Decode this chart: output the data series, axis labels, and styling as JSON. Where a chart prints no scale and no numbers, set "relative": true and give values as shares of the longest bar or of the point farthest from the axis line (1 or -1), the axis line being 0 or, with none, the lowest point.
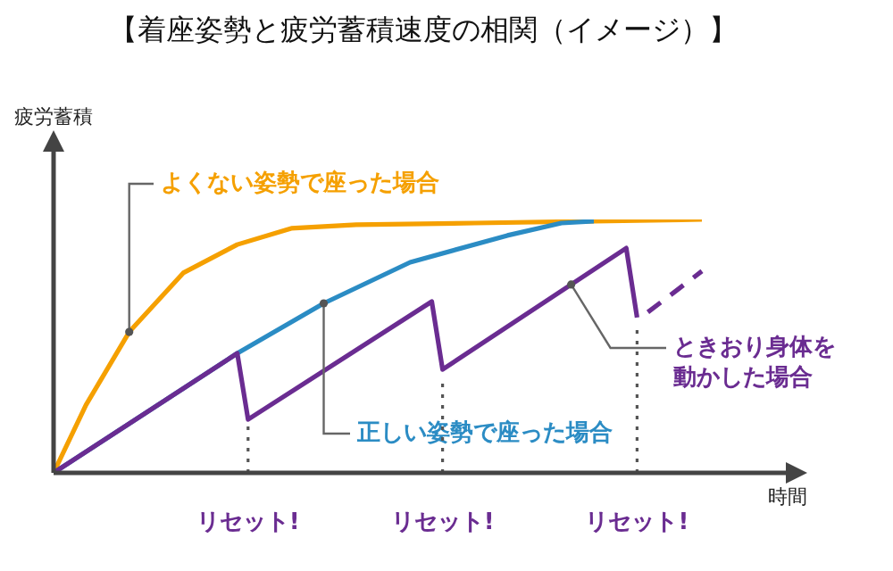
{
  "chart_data": {
    "type": "line",
    "title": "【着座姿勢と疲労蓄積速度の相関（イメージ）】",
    "xlabel": "時間",
    "ylabel": "疲労蓄積",
    "relative": true,
    "marker": "none",
    "line_style": "solid",
    "categories": [
      null,
      null,
      null,
      null,
      null,
      null,
      null,
      null,
      null,
      null,
      null,
      null,
      null,
      null,
      null,
      null,
      null,
      null,
      null,
      null,
      null,
      null,
      null,
      null,
      null,
      null,
      null,
      null,
      null,
      null,
      null,
      null,
      null,
      null,
      null,
      null,
      null,
      null,
      null,
      null,
      null,
      null,
      null,
      null,
      null,
      null,
      null,
      null,
      null,
      null,
      null,
      null,
      null,
      null,
      null,
      null,
      null,
      null,
      null,
      null,
      null
    ],
    "series": [
      {
        "name": "よくない姿勢で座った場合",
        "color": "#f5a000",
        "values": [
          0,
          null,
          null,
          0.268,
          null,
          null,
          null,
          0.556,
          null,
          null,
          null,
          null,
          0.789,
          null,
          null,
          null,
          null,
          0.901,
          null,
          null,
          null,
          null,
          0.965,
          null,
          null,
          null,
          null,
          null,
          0.979,
          null,
          null,
          null,
          null,
          null,
          null,
          null,
          null,
          null,
          null,
          0.986,
          null,
          null,
          null,
          null,
          null,
          null,
          null,
          null,
          null,
          null,
          0.993,
          null,
          null,
          null,
          null,
          null,
          null,
          null,
          null,
          null,
          1.0
        ]
      },
      {
        "name": "正しい姿勢で座った場合",
        "color": "#2b8cc4",
        "values": [
          0,
          null,
          null,
          null,
          null,
          null,
          null,
          null,
          null,
          null,
          null,
          null,
          null,
          null,
          null,
          null,
          null,
          0.472,
          null,
          null,
          null,
          null,
          null,
          null,
          null,
          0.669,
          null,
          null,
          null,
          null,
          null,
          null,
          null,
          0.831,
          null,
          null,
          null,
          null,
          null,
          null,
          null,
          null,
          0.937,
          null,
          null,
          null,
          null,
          0.986,
          null,
          null,
          0.993,
          null,
          null,
          null,
          null,
          null,
          null,
          null,
          null,
          null,
          null
        ]
      },
      {
        "name": "ときおり身体を動かした場合",
        "color": "#6a2c91",
        "values": [
          0,
          null,
          null,
          null,
          null,
          null,
          null,
          null,
          null,
          null,
          null,
          null,
          null,
          null,
          null,
          null,
          null,
          0.472,
          0.211,
          null,
          null,
          null,
          null,
          null,
          null,
          null,
          null,
          null,
          null,
          null,
          null,
          null,
          null,
          null,
          null,
          0.676,
          0.408,
          null,
          null,
          null,
          null,
          null,
          null,
          null,
          null,
          null,
          null,
          null,
          null,
          null,
          null,
          null,
          null,
          0.887,
          0.613,
          null,
          null,
          null,
          null,
          null,
          null
        ]
      },
      {
        "color": "#6a2c91",
        "line_style": "dashed",
        "values": [
          null,
          null,
          null,
          null,
          null,
          null,
          null,
          null,
          null,
          null,
          null,
          null,
          null,
          null,
          null,
          null,
          null,
          null,
          null,
          null,
          null,
          null,
          null,
          null,
          null,
          null,
          null,
          null,
          null,
          null,
          null,
          null,
          null,
          null,
          null,
          null,
          null,
          null,
          null,
          null,
          null,
          null,
          null,
          null,
          null,
          null,
          null,
          null,
          null,
          null,
          null,
          null,
          null,
          null,
          null,
          0.634,
          null,
          null,
          null,
          null,
          0.796
        ]
      }
    ],
    "annotations": [
      "リセット!",
      "リセット!",
      "リセット!"
    ]
  }
}
